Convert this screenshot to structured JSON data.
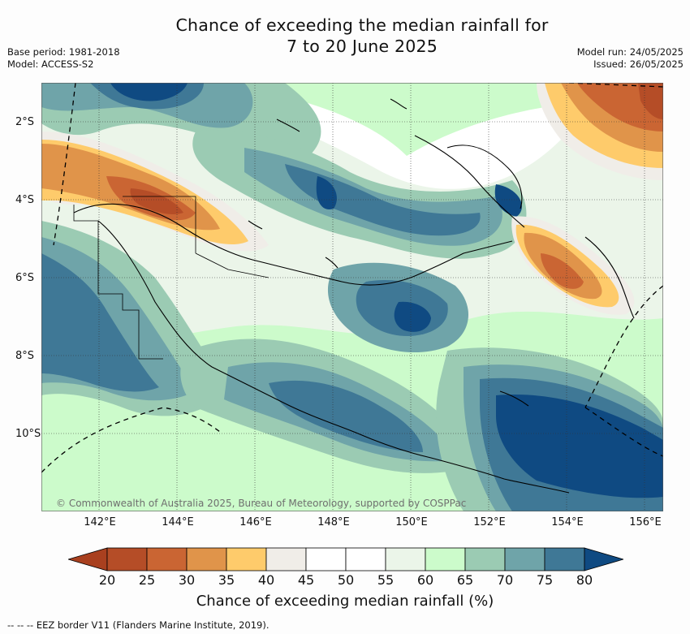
{
  "title_line1": "Chance of exceeding the median rainfall for",
  "title_line2": "7 to 20 June 2025",
  "base_period": "Base period: 1981-2018",
  "model": "Model: ACCESS-S2",
  "model_run": "Model run: 24/05/2025",
  "issued": "Issued: 26/05/2025",
  "copyright": "© Commonwealth of Australia 2025, Bureau of Meteorology, supported by COSPPac",
  "lat_labels": [
    "2°S",
    "4°S",
    "6°S",
    "8°S",
    "10°S"
  ],
  "lon_labels": [
    "142°E",
    "144°E",
    "146°E",
    "148°E",
    "150°E",
    "152°E",
    "154°E",
    "156°E"
  ],
  "colorbar": {
    "ticks": [
      "20",
      "25",
      "30",
      "35",
      "40",
      "45",
      "50",
      "55",
      "60",
      "65",
      "70",
      "75",
      "80"
    ],
    "colors": [
      "#a9401f",
      "#b54d27",
      "#ca6533",
      "#e0944a",
      "#fecb6b",
      "#f0ede8",
      "#ffffff",
      "#ffffff",
      "#ebf5e9",
      "#ccfbcb",
      "#9bcbb3",
      "#6fa4a9",
      "#3f7896",
      "#0f4a82"
    ],
    "title": "Chance of exceeding median rainfall (%)"
  },
  "eez_note": "--  --  -- EEZ border V11 (Flanders Marine Institute, 2019).",
  "map": {
    "lon_range": [
      140.6,
      156.6
    ],
    "lat_range": [
      -11.6,
      -1.0
    ],
    "gridline_lons": [
      142,
      144,
      146,
      148,
      150,
      152,
      154,
      156
    ],
    "gridline_lats": [
      -2,
      -4,
      -6,
      -8,
      -10
    ]
  }
}
